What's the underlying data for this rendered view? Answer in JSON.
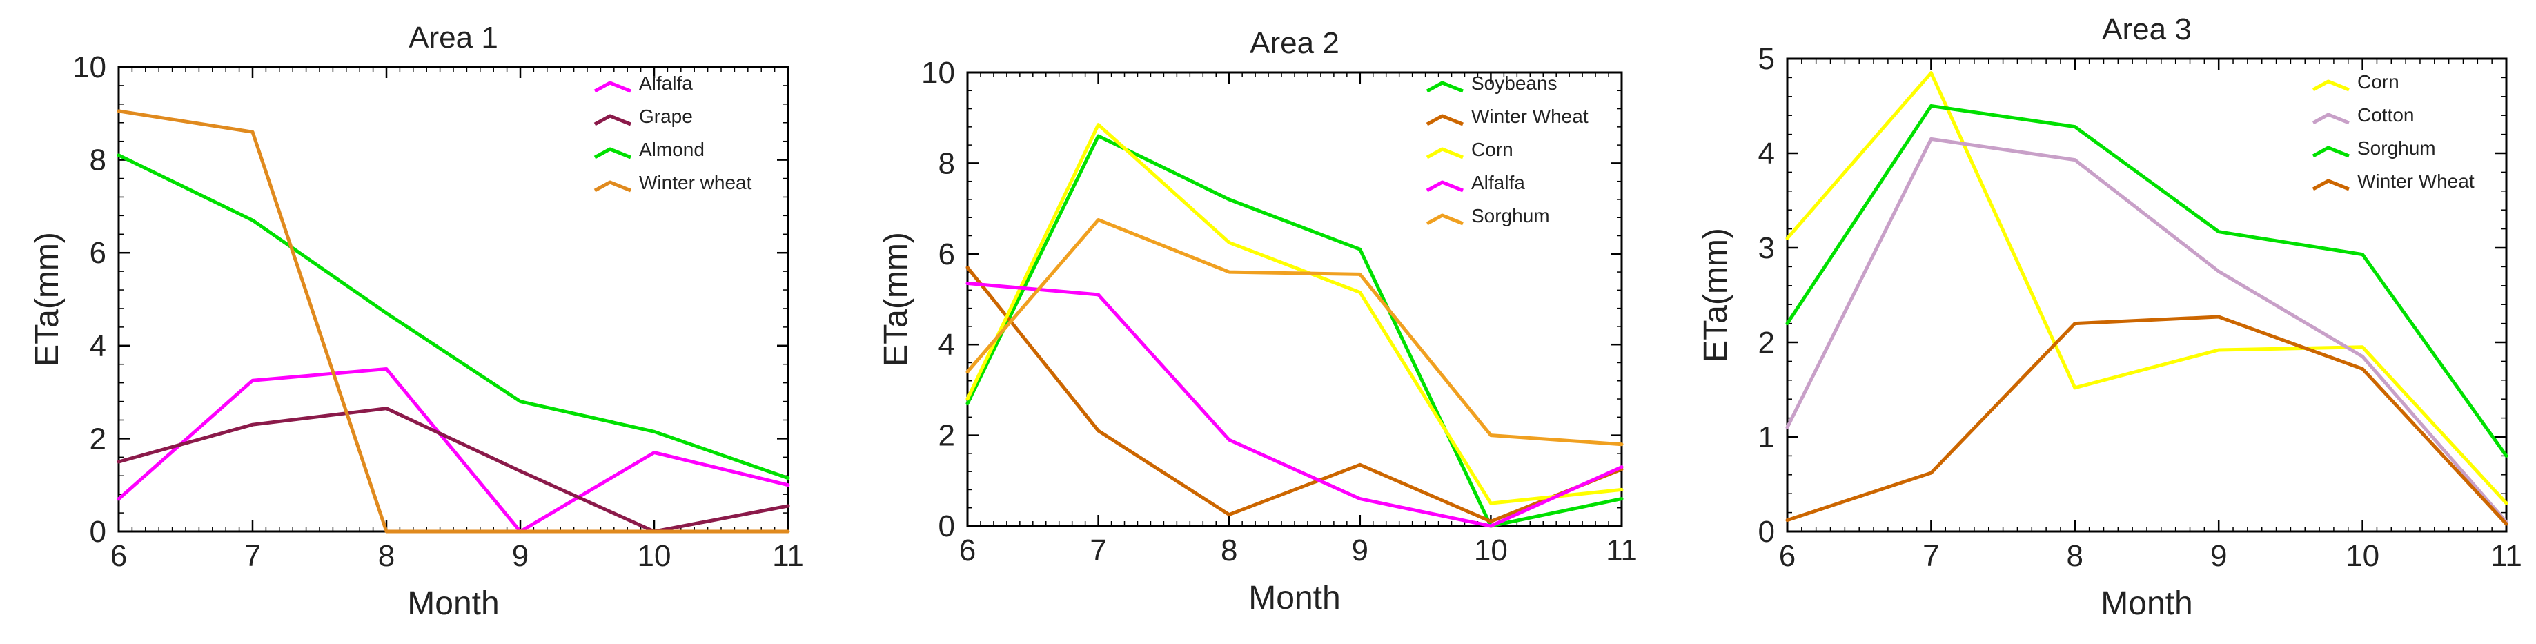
{
  "chart_data": [
    {
      "type": "line",
      "title": "Area 1",
      "xlabel": "Month",
      "ylabel": "ETa(mm)",
      "x": [
        6,
        7,
        8,
        9,
        10,
        11
      ],
      "xlim": [
        6,
        11
      ],
      "ylim": [
        0,
        10
      ],
      "yticks": [
        0,
        2,
        4,
        6,
        8,
        10
      ],
      "legend_position": "top-right",
      "series": [
        {
          "name": "Alfalfa",
          "color": "#ff00ff",
          "values": [
            0.7,
            3.25,
            3.5,
            0.0,
            1.7,
            1.0
          ]
        },
        {
          "name": "Grape",
          "color": "#8b1a4a",
          "values": [
            1.5,
            2.3,
            2.65,
            1.3,
            0.0,
            0.55
          ]
        },
        {
          "name": "Almond",
          "color": "#00e000",
          "values": [
            8.1,
            6.7,
            4.7,
            2.8,
            2.15,
            1.15
          ]
        },
        {
          "name": "Winter wheat",
          "color": "#e08a1e",
          "values": [
            9.05,
            8.6,
            0.0,
            0.0,
            0.0,
            0.0
          ]
        }
      ]
    },
    {
      "type": "line",
      "title": "Area 2",
      "xlabel": "Month",
      "ylabel": "ETa(mm)",
      "x": [
        6,
        7,
        8,
        9,
        10,
        11
      ],
      "xlim": [
        6,
        11
      ],
      "ylim": [
        0,
        10
      ],
      "yticks": [
        0,
        2,
        4,
        6,
        8,
        10
      ],
      "legend_position": "top-right",
      "series": [
        {
          "name": "Soybeans",
          "color": "#00e000",
          "values": [
            2.7,
            8.6,
            7.2,
            6.1,
            0.0,
            0.6
          ]
        },
        {
          "name": "Winter Wheat",
          "color": "#cc6600",
          "values": [
            5.7,
            2.1,
            0.25,
            1.35,
            0.1,
            1.25
          ]
        },
        {
          "name": "Corn",
          "color": "#ffff00",
          "values": [
            2.8,
            8.85,
            6.25,
            5.15,
            0.5,
            0.8
          ]
        },
        {
          "name": "Alfalfa",
          "color": "#ff00ff",
          "values": [
            5.35,
            5.1,
            1.9,
            0.6,
            0.0,
            1.3
          ]
        },
        {
          "name": "Sorghum",
          "color": "#f0a020",
          "values": [
            3.4,
            6.75,
            5.6,
            5.55,
            2.0,
            1.8
          ]
        }
      ]
    },
    {
      "type": "line",
      "title": "Area 3",
      "xlabel": "Month",
      "ylabel": "ETa(mm)",
      "x": [
        6,
        7,
        8,
        9,
        10,
        11
      ],
      "xlim": [
        6,
        11
      ],
      "ylim": [
        0,
        5
      ],
      "yticks": [
        0,
        1,
        2,
        3,
        4,
        5
      ],
      "legend_position": "top-right",
      "series": [
        {
          "name": "Corn",
          "color": "#ffff00",
          "values": [
            3.1,
            4.85,
            1.52,
            1.92,
            1.95,
            0.3
          ]
        },
        {
          "name": "Cotton",
          "color": "#c8a0c8",
          "values": [
            1.1,
            4.15,
            3.93,
            2.75,
            1.85,
            0.1
          ]
        },
        {
          "name": "Sorghum",
          "color": "#00e000",
          "values": [
            2.2,
            4.5,
            4.28,
            3.17,
            2.93,
            0.8
          ]
        },
        {
          "name": "Winter Wheat",
          "color": "#cc6600",
          "values": [
            0.12,
            0.62,
            2.2,
            2.27,
            1.72,
            0.08
          ]
        }
      ]
    }
  ]
}
